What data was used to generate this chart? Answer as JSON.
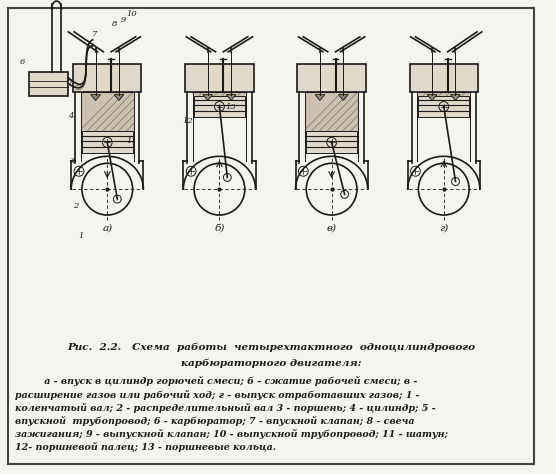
{
  "bg_color": "#f5f5f0",
  "border_color": "#333333",
  "fig_caption_line1": "Рис.  2.2.   Схема  работы  четырехтактного  одноцилиндрового",
  "fig_caption_line2": "карбюраторного двигателя:",
  "fig_caption_body": "         а - впуск в цилиндр горючей смеси; б - сжатие рабочей смеси; в -\nрасширение газов или рабочий ход; г - выпуск отработавших газов; 1 -\nколенчатый вал; 2 - распределительный вал 3 - поршень; 4 - цилиндр; 5 -\nвпускной  трубопровод; 6 - карбюратор; 7 - впускной клапан; 8 - свеча\nзажигания; 9 - выпускной клапан; 10 - выпускной трубопровод; 11 - шатун;\n12- поршневой палец; 13 - поршневые кольца.",
  "stroke_labels": [
    "а)",
    "б)",
    "в)",
    "г)"
  ],
  "lc": "#1a1a1a",
  "hatch_color": "#555544",
  "fill_light": "#e0d8c8",
  "fill_chamber": "#c8bca8"
}
